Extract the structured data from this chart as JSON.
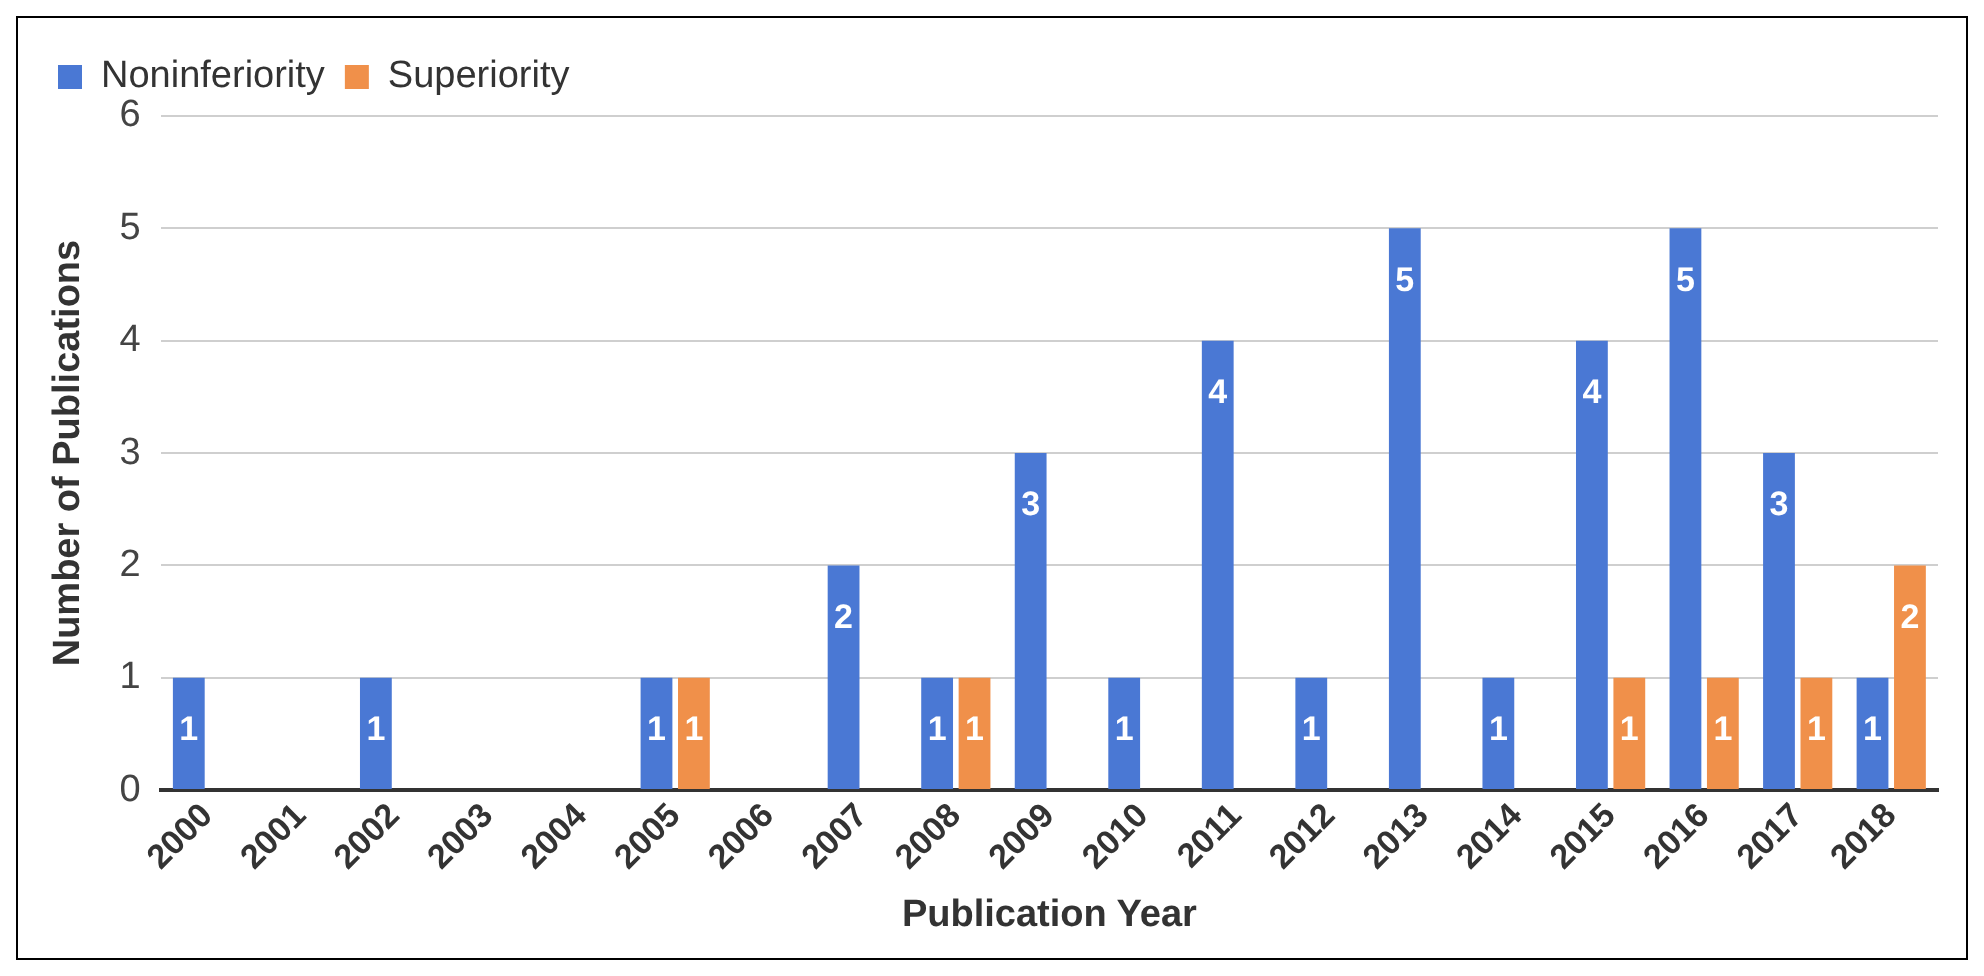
{
  "chart_data": {
    "type": "bar",
    "xlabel": "Publication Year",
    "ylabel": "Number of Publications",
    "categories": [
      "2000",
      "2001",
      "2002",
      "2003",
      "2004",
      "2005",
      "2006",
      "2007",
      "2008",
      "2009",
      "2010",
      "2011",
      "2012",
      "2013",
      "2014",
      "2015",
      "2016",
      "2017",
      "2018"
    ],
    "series": [
      {
        "name": "Noninferiority",
        "color": "#4a78d4",
        "values": [
          1,
          null,
          1,
          null,
          null,
          1,
          null,
          2,
          1,
          3,
          1,
          4,
          1,
          5,
          1,
          4,
          5,
          3,
          1
        ]
      },
      {
        "name": "Superiority",
        "color": "#f0904a",
        "values": [
          null,
          null,
          null,
          null,
          null,
          1,
          null,
          null,
          1,
          null,
          null,
          null,
          null,
          null,
          null,
          1,
          1,
          1,
          2
        ]
      }
    ],
    "ylim": [
      0,
      6
    ],
    "yticks": [
      0,
      1,
      2,
      3,
      4,
      5,
      6
    ],
    "grid": "y",
    "legend": "top left",
    "data_labels": true
  }
}
